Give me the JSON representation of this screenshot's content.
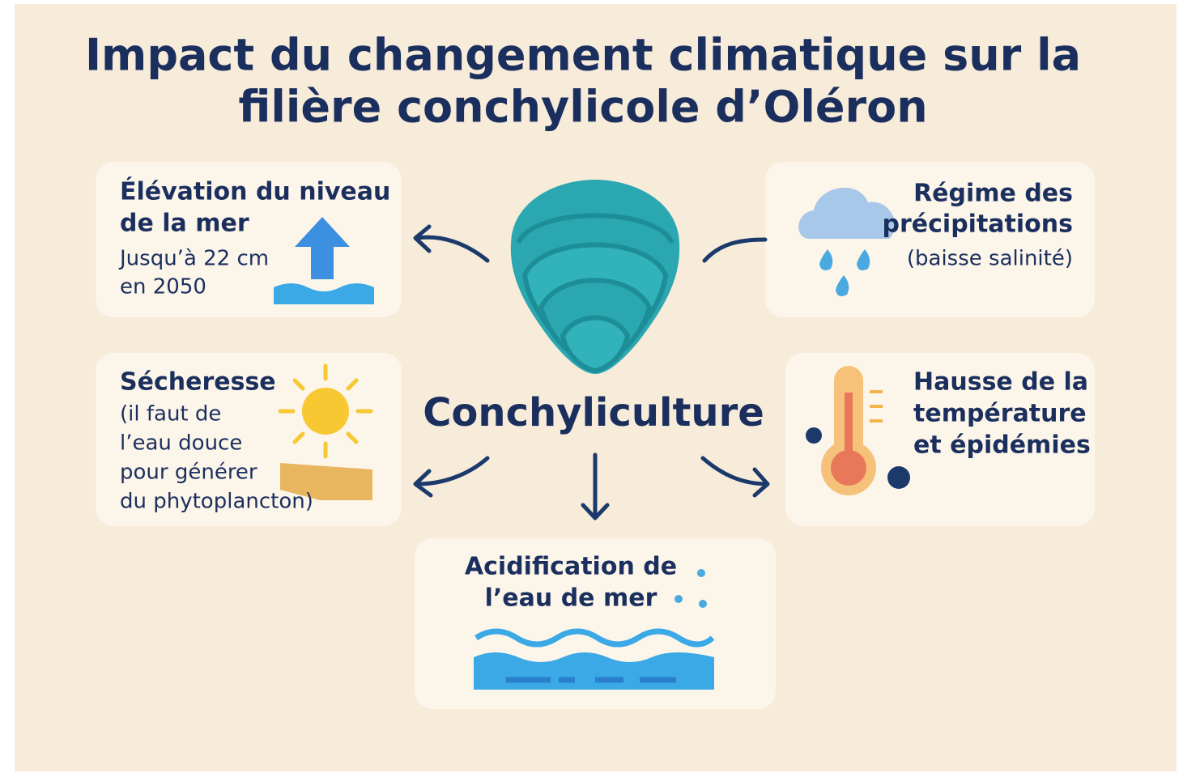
{
  "title": [
    "Impact du changement climatique sur la",
    "filière conchylicole d’Oléron"
  ],
  "center": "Conchyliculture",
  "cards": [
    {
      "title": [
        "Élévation du niveau",
        "de la mer"
      ],
      "text": [
        "Jusqu’à 22 cm",
        "en 2050"
      ]
    },
    {
      "title": [
        "Régime des",
        "précipitations"
      ],
      "text": [
        "(baisse salinité)"
      ]
    },
    {
      "title": [
        "Sécheresse"
      ],
      "text": [
        "(il faut de",
        "l’eau douce",
        "pour générer",
        "du phytoplancton)"
      ]
    },
    {
      "title": [
        "Hausse de la",
        "température",
        "et épidémies"
      ]
    },
    {
      "title": [
        "Acidification de",
        "l’eau de mer"
      ]
    }
  ]
}
